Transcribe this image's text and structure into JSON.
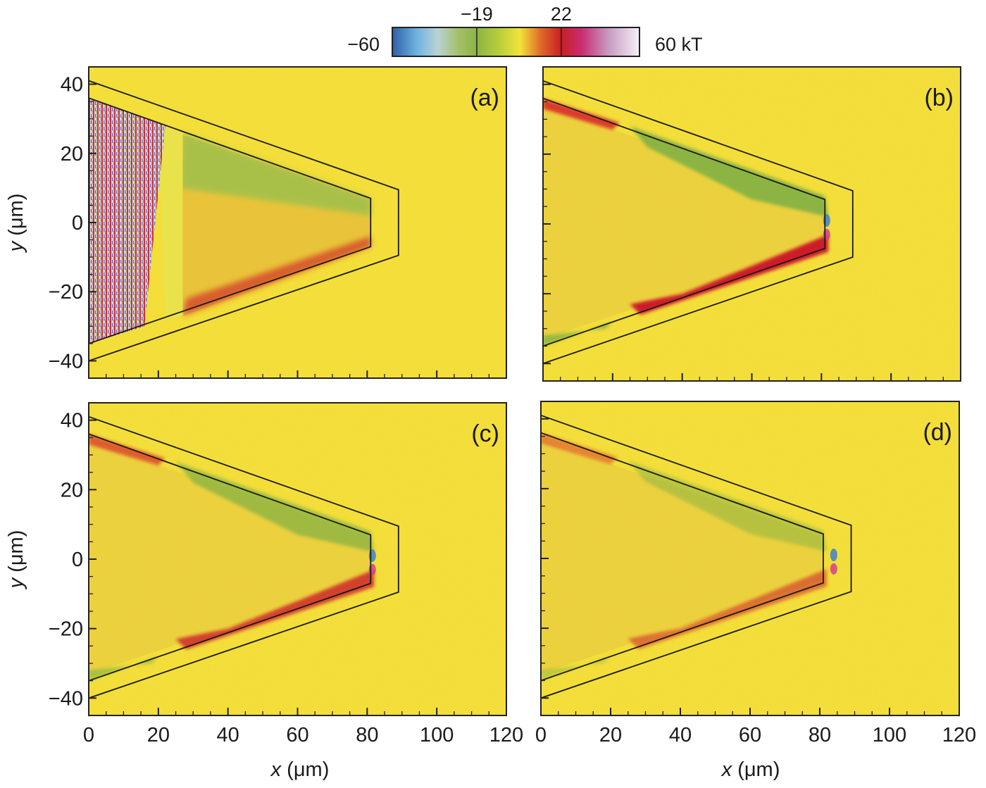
{
  "chart_data": {
    "type": "heatmap",
    "title": "",
    "colorbar": {
      "min_label": "−60",
      "max_label": "60 kT",
      "min": -60,
      "max": 60,
      "unit": "kT",
      "divisions": [
        {
          "value": -19,
          "label": "−19"
        },
        {
          "value": 22,
          "label": "22"
        }
      ],
      "stops": [
        {
          "value": -60,
          "color": "#2f5fa8"
        },
        {
          "value": -48,
          "color": "#6fb2e0"
        },
        {
          "value": -38,
          "color": "#b9d3d6"
        },
        {
          "value": -28,
          "color": "#a4c06a"
        },
        {
          "value": -19,
          "color": "#8cb443"
        },
        {
          "value": -8,
          "color": "#b8cf3c"
        },
        {
          "value": 2,
          "color": "#f3e43a"
        },
        {
          "value": 12,
          "color": "#e06a2a"
        },
        {
          "value": 22,
          "color": "#c81f24"
        },
        {
          "value": 32,
          "color": "#c92d73"
        },
        {
          "value": 45,
          "color": "#c79ac2"
        },
        {
          "value": 60,
          "color": "#f5f2f6"
        }
      ]
    },
    "xlabel_var": "x",
    "xlabel_unit": " (μm)",
    "ylabel_var": "y",
    "ylabel_unit": " (μm)",
    "xlim": [
      0,
      120
    ],
    "ylim": [
      -45,
      45
    ],
    "xticks": [
      0,
      20,
      40,
      60,
      80,
      100,
      120
    ],
    "xtick_labels": [
      "0",
      "20",
      "40",
      "60",
      "80",
      "100",
      "120"
    ],
    "yticks": [
      40,
      20,
      0,
      -20,
      -40
    ],
    "ytick_labels": [
      "40",
      "20",
      "0",
      "−20",
      "−40"
    ],
    "geometry": {
      "inner_boundary": [
        [
          0,
          36
        ],
        [
          81,
          7
        ],
        [
          81,
          -7
        ],
        [
          0,
          -35
        ]
      ],
      "outer_boundary": [
        [
          0,
          41
        ],
        [
          89,
          9.5
        ],
        [
          89,
          -9.5
        ],
        [
          0,
          -40
        ]
      ]
    },
    "background_color": "#f3de3a",
    "panels": [
      {
        "label": "(a)",
        "description": "Early stage: hot mixed region near x=0–20, shock front ~x=22–27, green upper edge, red lower edge inside cone"
      },
      {
        "label": "(b)",
        "description": "Red band along lower inner wall, green band along upper inner wall, blue spot near apex"
      },
      {
        "label": "(c)",
        "description": "Narrow green upper band and red lower band converging at apex near x=81, blue/magenta at tip"
      },
      {
        "label": "(d)",
        "description": "Weaker bands, jet-like hot spot at x≈84–86 beyond inner apex"
      }
    ]
  }
}
